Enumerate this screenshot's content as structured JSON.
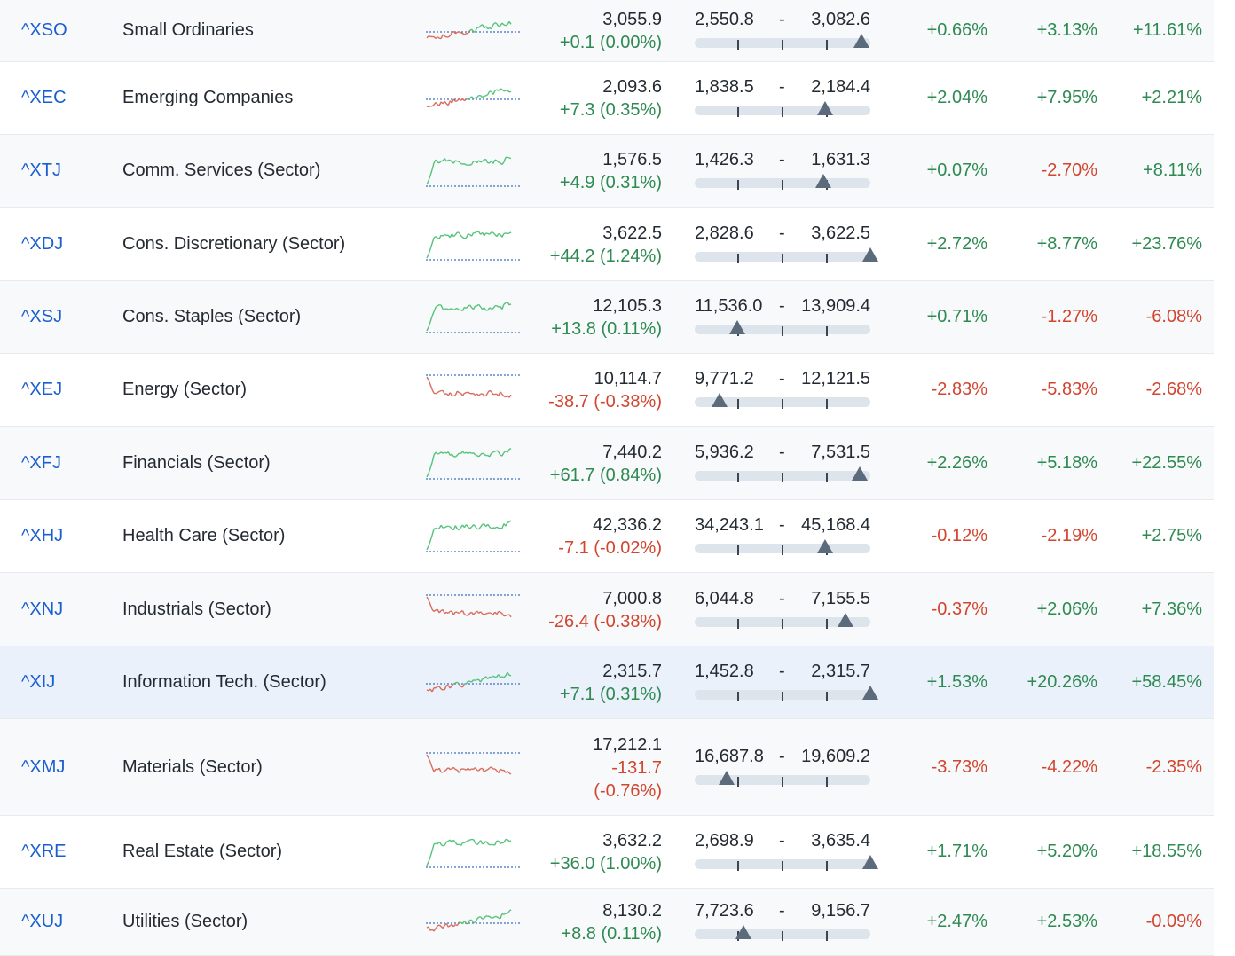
{
  "rows": [
    {
      "symbol": "^XSO",
      "name": "Small Ordinaries",
      "price": "3,055.9",
      "change": "+0.1 (0.00%)",
      "dir": "up",
      "low": "2,550.8",
      "high": "3,082.6",
      "pos": 0.95,
      "c1": "+0.66%",
      "c1d": "up",
      "c2": "+3.13%",
      "c2d": "up",
      "c3": "+11.61%",
      "c3d": "up",
      "spark": "mixed"
    },
    {
      "symbol": "^XEC",
      "name": "Emerging Companies",
      "price": "2,093.6",
      "change": "+7.3 (0.35%)",
      "dir": "up",
      "low": "1,838.5",
      "high": "2,184.4",
      "pos": 0.74,
      "c1": "+2.04%",
      "c1d": "up",
      "c2": "+7.95%",
      "c2d": "up",
      "c3": "+2.21%",
      "c3d": "up",
      "spark": "mixed"
    },
    {
      "symbol": "^XTJ",
      "name": "Comm. Services (Sector)",
      "price": "1,576.5",
      "change": "+4.9 (0.31%)",
      "dir": "up",
      "low": "1,426.3",
      "high": "1,631.3",
      "pos": 0.73,
      "c1": "+0.07%",
      "c1d": "up",
      "c2": "-2.70%",
      "c2d": "dn",
      "c3": "+8.11%",
      "c3d": "up",
      "spark": "up"
    },
    {
      "symbol": "^XDJ",
      "name": "Cons. Discretionary (Sector)",
      "price": "3,622.5",
      "change": "+44.2 (1.24%)",
      "dir": "up",
      "low": "2,828.6",
      "high": "3,622.5",
      "pos": 1.0,
      "c1": "+2.72%",
      "c1d": "up",
      "c2": "+8.77%",
      "c2d": "up",
      "c3": "+23.76%",
      "c3d": "up",
      "spark": "up"
    },
    {
      "symbol": "^XSJ",
      "name": "Cons. Staples (Sector)",
      "price": "12,105.3",
      "change": "+13.8 (0.11%)",
      "dir": "up",
      "low": "11,536.0",
      "high": "13,909.4",
      "pos": 0.24,
      "c1": "+0.71%",
      "c1d": "up",
      "c2": "-1.27%",
      "c2d": "dn",
      "c3": "-6.08%",
      "c3d": "dn",
      "spark": "up"
    },
    {
      "symbol": "^XEJ",
      "name": "Energy (Sector)",
      "price": "10,114.7",
      "change": "-38.7 (-0.38%)",
      "dir": "dn",
      "low": "9,771.2",
      "high": "12,121.5",
      "pos": 0.14,
      "c1": "-2.83%",
      "c1d": "dn",
      "c2": "-5.83%",
      "c2d": "dn",
      "c3": "-2.68%",
      "c3d": "dn",
      "spark": "dn"
    },
    {
      "symbol": "^XFJ",
      "name": "Financials (Sector)",
      "price": "7,440.2",
      "change": "+61.7 (0.84%)",
      "dir": "up",
      "low": "5,936.2",
      "high": "7,531.5",
      "pos": 0.94,
      "c1": "+2.26%",
      "c1d": "up",
      "c2": "+5.18%",
      "c2d": "up",
      "c3": "+22.55%",
      "c3d": "up",
      "spark": "up"
    },
    {
      "symbol": "^XHJ",
      "name": "Health Care (Sector)",
      "price": "42,336.2",
      "change": "-7.1 (-0.02%)",
      "dir": "dn",
      "low": "34,243.1",
      "high": "45,168.4",
      "pos": 0.74,
      "c1": "-0.12%",
      "c1d": "dn",
      "c2": "-2.19%",
      "c2d": "dn",
      "c3": "+2.75%",
      "c3d": "up",
      "spark": "up"
    },
    {
      "symbol": "^XNJ",
      "name": "Industrials (Sector)",
      "price": "7,000.8",
      "change": "-26.4 (-0.38%)",
      "dir": "dn",
      "low": "6,044.8",
      "high": "7,155.5",
      "pos": 0.86,
      "c1": "-0.37%",
      "c1d": "dn",
      "c2": "+2.06%",
      "c2d": "up",
      "c3": "+7.36%",
      "c3d": "up",
      "spark": "dn"
    },
    {
      "symbol": "^XIJ",
      "name": "Information Tech. (Sector)",
      "price": "2,315.7",
      "change": "+7.1 (0.31%)",
      "dir": "up",
      "low": "1,452.8",
      "high": "2,315.7",
      "pos": 1.0,
      "c1": "+1.53%",
      "c1d": "up",
      "c2": "+20.26%",
      "c2d": "up",
      "c3": "+58.45%",
      "c3d": "up",
      "spark": "mixed"
    },
    {
      "symbol": "^XMJ",
      "name": "Materials (Sector)",
      "price": "17,212.1",
      "change": "-131.7",
      "change2": "(-0.76%)",
      "dir": "dn",
      "low": "16,687.8",
      "high": "19,609.2",
      "pos": 0.18,
      "c1": "-3.73%",
      "c1d": "dn",
      "c2": "-4.22%",
      "c2d": "dn",
      "c3": "-2.35%",
      "c3d": "dn",
      "spark": "dn"
    },
    {
      "symbol": "^XRE",
      "name": "Real Estate (Sector)",
      "price": "3,632.2",
      "change": "+36.0 (1.00%)",
      "dir": "up",
      "low": "2,698.9",
      "high": "3,635.4",
      "pos": 1.0,
      "c1": "+1.71%",
      "c1d": "up",
      "c2": "+5.20%",
      "c2d": "up",
      "c3": "+18.55%",
      "c3d": "up",
      "spark": "up"
    },
    {
      "symbol": "^XUJ",
      "name": "Utilities (Sector)",
      "price": "8,130.2",
      "change": "+8.8 (0.11%)",
      "dir": "up",
      "low": "7,723.6",
      "high": "9,156.7",
      "pos": 0.28,
      "c1": "+2.47%",
      "c1d": "up",
      "c2": "+2.53%",
      "c2d": "up",
      "c3": "-0.09%",
      "c3d": "dn",
      "spark": "mixed"
    }
  ],
  "colors": {
    "up": "#2e8a52",
    "down": "#d2452f",
    "link": "#1a5fd1",
    "spark_up": "#55c27a",
    "spark_down": "#d86b5c",
    "baseline": "#3b6fc4"
  }
}
